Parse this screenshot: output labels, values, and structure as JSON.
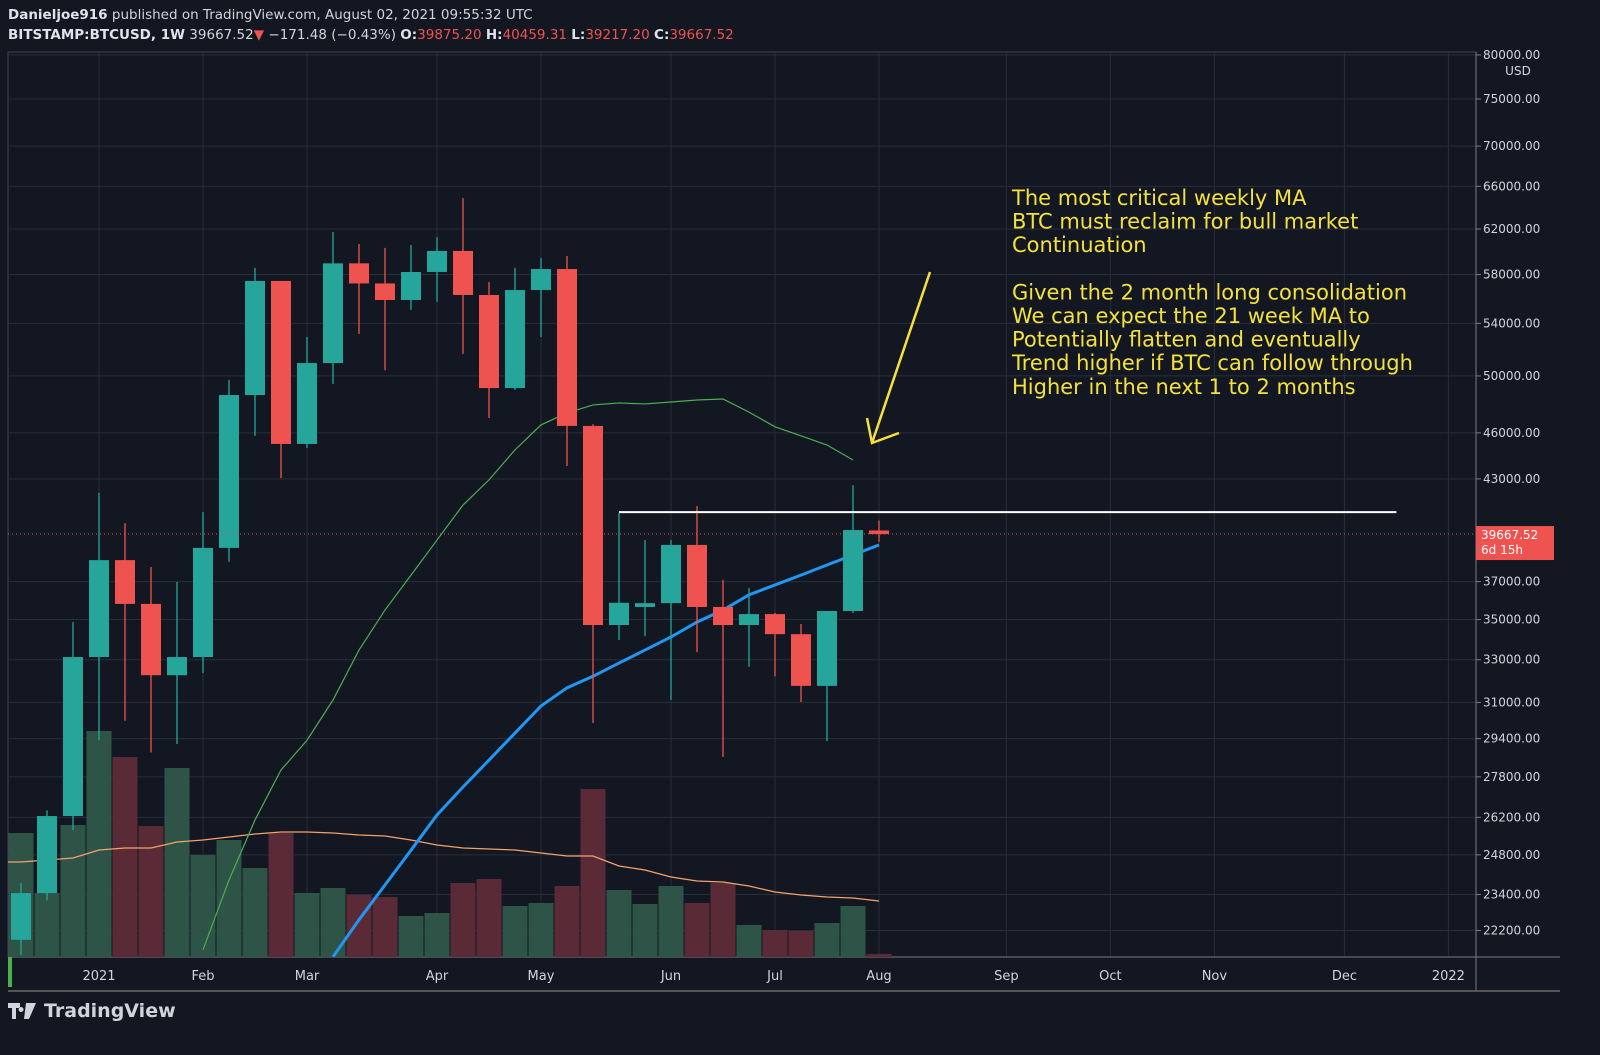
{
  "header": {
    "author": "Danieljoe916",
    "published": "published on TradingView.com, August 02, 2021 09:55:32 UTC",
    "symbol": "BITSTAMP:BTCUSD, 1W",
    "last": "39667.52",
    "change": "−171.48 (−0.43%)",
    "o_label": "O:",
    "o": "39875.20",
    "h_label": "H:",
    "h": "40459.31",
    "l_label": "L:",
    "l": "39217.20",
    "c_label": "C:",
    "c": "39667.52"
  },
  "branding": "TradingView",
  "chart_data": {
    "type": "candlestick",
    "yscale": "log",
    "currency": "USD",
    "colors": {
      "up": "#26a69a",
      "down": "#ef5350",
      "ma21": "#2196f3",
      "ma_long": "#4caf50",
      "volume_ma": "#f5a26b",
      "annotation": "#f5e13b",
      "level": "#ffffff"
    },
    "y_ticks": [
      80000,
      75000,
      70000,
      66000,
      62000,
      58000,
      54000,
      50000,
      46000,
      43000,
      37000,
      35000,
      33000,
      31000,
      29400,
      27800,
      26200,
      24800,
      23400,
      22200
    ],
    "x_ticks": [
      {
        "label": "2021",
        "week": 3
      },
      {
        "label": "Feb",
        "week": 7
      },
      {
        "label": "Mar",
        "week": 11
      },
      {
        "label": "Apr",
        "week": 16
      },
      {
        "label": "May",
        "week": 20
      },
      {
        "label": "Jun",
        "week": 25
      },
      {
        "label": "Jul",
        "week": 29
      },
      {
        "label": "Aug",
        "week": 33
      },
      {
        "label": "Sep",
        "week": 37.9
      },
      {
        "label": "Oct",
        "week": 41.9
      },
      {
        "label": "Nov",
        "week": 45.9
      },
      {
        "label": "Dec",
        "week": 50.9
      },
      {
        "label": "2022",
        "week": 54.9
      }
    ],
    "candles": [
      [
        21900,
        23800,
        21420,
        23450
      ],
      [
        23450,
        26470,
        23200,
        26250
      ],
      [
        26250,
        34870,
        25720,
        33130
      ],
      [
        33130,
        42130,
        29330,
        38180
      ],
      [
        38180,
        40300,
        30180,
        35810
      ],
      [
        35810,
        37800,
        28810,
        32260
      ],
      [
        32260,
        36980,
        29170,
        33130
      ],
      [
        33130,
        40960,
        32360,
        38870
      ],
      [
        38870,
        49710,
        38080,
        48620
      ],
      [
        48620,
        58570,
        45800,
        57460
      ],
      [
        57460,
        57460,
        43060,
        45260
      ],
      [
        45260,
        52930,
        45000,
        50950
      ],
      [
        50950,
        61740,
        49420,
        58960
      ],
      [
        58960,
        60650,
        53170,
        57250
      ],
      [
        57250,
        60310,
        50420,
        55880
      ],
      [
        55880,
        60570,
        55070,
        58220
      ],
      [
        58220,
        61260,
        55720,
        60040
      ],
      [
        60040,
        64870,
        51640,
        56290
      ],
      [
        56290,
        57380,
        47010,
        49120
      ],
      [
        49120,
        58570,
        48980,
        56700
      ],
      [
        56700,
        59430,
        52930,
        58470
      ],
      [
        58470,
        59600,
        43820,
        46470
      ],
      [
        46470,
        46590,
        30080,
        34720
      ],
      [
        34720,
        40900,
        33970,
        35870
      ],
      [
        35650,
        39320,
        34160,
        35850
      ],
      [
        35850,
        39320,
        31110,
        39040
      ],
      [
        39040,
        41330,
        33370,
        35650
      ],
      [
        35650,
        37090,
        28620,
        34720
      ],
      [
        34720,
        36650,
        32660,
        35280
      ],
      [
        35280,
        35340,
        32210,
        34260
      ],
      [
        34260,
        34770,
        31020,
        31760
      ],
      [
        31760,
        35440,
        29290,
        35440
      ],
      [
        35440,
        42610,
        35340,
        39900
      ],
      [
        39875.2,
        40459.31,
        39217.2,
        39667.52
      ]
    ],
    "volume_relative": [
      124,
      64,
      132,
      226,
      200,
      131,
      189,
      102,
      117,
      89,
      124,
      64,
      69,
      62,
      60,
      41,
      44,
      74,
      78,
      51,
      54,
      71,
      168,
      67,
      53,
      71,
      54,
      74,
      32,
      27,
      26,
      34,
      51,
      3
    ],
    "volume_ma_relative": [
      95,
      97,
      99,
      107,
      109,
      109,
      115,
      117,
      120,
      123,
      125,
      125,
      124,
      122,
      121,
      117,
      112,
      109,
      108,
      107,
      104,
      101,
      101,
      91,
      87,
      80,
      76,
      75,
      71,
      65,
      62,
      60,
      59,
      56
    ],
    "ma21": {
      "start_week": 12,
      "values": [
        21360,
        22550,
        23730,
        24970,
        26290,
        27390,
        28490,
        29640,
        30840,
        31670,
        32210,
        32840,
        33470,
        34120,
        34870,
        35490,
        36290,
        36820,
        37350,
        37910,
        38470,
        39040
      ]
    },
    "ma_long": {
      "start_week": 7,
      "values": [
        21580,
        23900,
        26100,
        28080,
        29330,
        31110,
        33470,
        35490,
        37350,
        39320,
        41390,
        42940,
        44870,
        46540,
        47360,
        47920,
        48060,
        47990,
        48130,
        48270,
        48340,
        47420,
        46410,
        45800,
        45190,
        44210
      ]
    },
    "level_line": {
      "price": 40960,
      "from_week": 23,
      "to_week": 52.9
    },
    "last_price_label": "39667.52",
    "countdown": "6d 15h",
    "annotation_lines": [
      "The most critical weekly MA",
      "BTC must reclaim for bull market",
      "Continuation",
      "",
      "Given the 2 month long consolidation",
      "We can expect the 21 week MA to",
      "Potentially flatten and eventually",
      "Trend higher if BTC can follow through",
      "Higher in the next 1 to 2 months"
    ]
  }
}
